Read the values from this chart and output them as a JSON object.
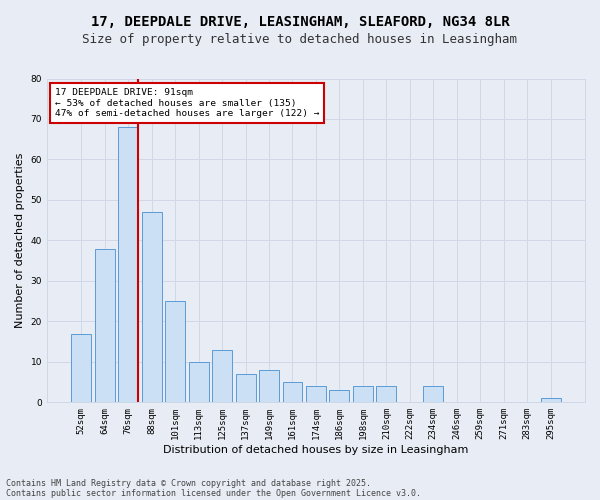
{
  "title_line1": "17, DEEPDALE DRIVE, LEASINGHAM, SLEAFORD, NG34 8LR",
  "title_line2": "Size of property relative to detached houses in Leasingham",
  "xlabel": "Distribution of detached houses by size in Leasingham",
  "ylabel": "Number of detached properties",
  "categories": [
    "52sqm",
    "64sqm",
    "76sqm",
    "88sqm",
    "101sqm",
    "113sqm",
    "125sqm",
    "137sqm",
    "149sqm",
    "161sqm",
    "174sqm",
    "186sqm",
    "198sqm",
    "210sqm",
    "222sqm",
    "234sqm",
    "246sqm",
    "259sqm",
    "271sqm",
    "283sqm",
    "295sqm"
  ],
  "values": [
    17,
    38,
    68,
    47,
    25,
    10,
    13,
    7,
    8,
    5,
    4,
    3,
    4,
    4,
    0,
    4,
    0,
    0,
    0,
    0,
    1
  ],
  "bar_color": "#cce0f5",
  "bar_edge_color": "#5b9bd5",
  "vline_color": "#cc0000",
  "annotation_text": "17 DEEPDALE DRIVE: 91sqm\n← 53% of detached houses are smaller (135)\n47% of semi-detached houses are larger (122) →",
  "annotation_box_color": "#ffffff",
  "annotation_box_edge_color": "#cc0000",
  "ylim": [
    0,
    80
  ],
  "yticks": [
    0,
    10,
    20,
    30,
    40,
    50,
    60,
    70,
    80
  ],
  "grid_color": "#d0d8e8",
  "background_color": "#e8edf5",
  "footer_line1": "Contains HM Land Registry data © Crown copyright and database right 2025.",
  "footer_line2": "Contains public sector information licensed under the Open Government Licence v3.0.",
  "title_fontsize": 10,
  "subtitle_fontsize": 9,
  "tick_fontsize": 6.5,
  "label_fontsize": 8,
  "footer_fontsize": 6
}
